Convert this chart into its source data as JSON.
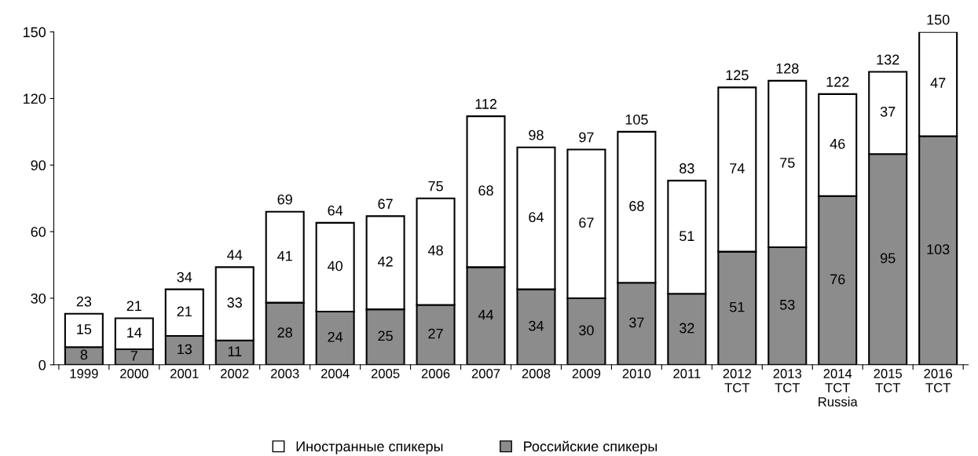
{
  "chart_data": {
    "type": "bar",
    "stacked": true,
    "categories": [
      "1999",
      "2000",
      "2001",
      "2002",
      "2003",
      "2004",
      "2005",
      "2006",
      "2007",
      "2008",
      "2009",
      "2010",
      "2011",
      "2012\nTCT",
      "2013\nTCT",
      "2014\nTCT\nRussia",
      "2015\nTCT",
      "2016\nTCT"
    ],
    "series": [
      {
        "name": "Российские спикеры",
        "color": "#8c8c8c",
        "values": [
          8,
          7,
          13,
          11,
          28,
          24,
          25,
          27,
          44,
          34,
          30,
          37,
          32,
          51,
          53,
          76,
          95,
          103
        ]
      },
      {
        "name": "Иностранные спикеры",
        "color": "#ffffff",
        "values": [
          15,
          14,
          21,
          33,
          41,
          40,
          42,
          48,
          68,
          64,
          67,
          68,
          51,
          74,
          75,
          46,
          37,
          47
        ]
      }
    ],
    "totals": [
      "23",
      "21",
      "34",
      "44",
      "69",
      "64",
      "67",
      "75",
      "112",
      "98",
      "97",
      "105",
      "83",
      "125",
      "128",
      "122",
      "132",
      "150"
    ],
    "data_labels": true,
    "ylim": [
      0,
      150
    ],
    "yticks": [
      0,
      30,
      60,
      90,
      120,
      150
    ],
    "grid": false,
    "legend": "bottom"
  }
}
